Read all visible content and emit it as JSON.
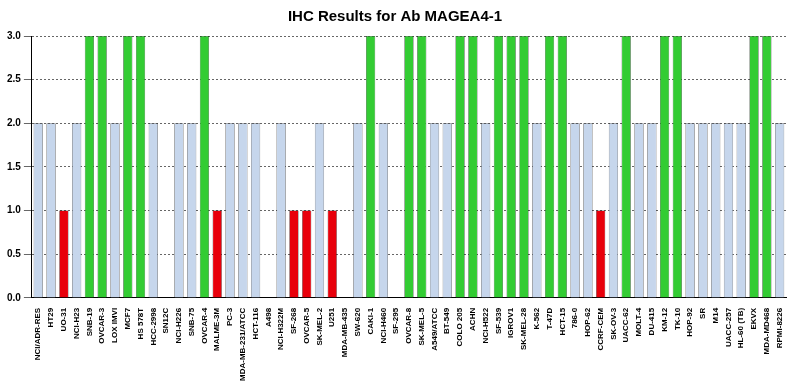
{
  "chart_data": {
    "type": "bar",
    "title": "IHC Results for Ab MAGEA4-1",
    "categories": [
      "NCI/ADR-RES",
      "HT29",
      "UO-31",
      "NCI-H23",
      "SNB-19",
      "OVCAR-3",
      "LOX IMVI",
      "MCF7",
      "HS 578T",
      "HCC-2998",
      "SN12C",
      "NCI-H226",
      "SNB-75",
      "OVCAR-4",
      "MALME-3M",
      "PC-3",
      "MDA-MB-231/ATCC",
      "HCT-116",
      "A498",
      "NCI-H322M",
      "SF-268",
      "OVCAR-5",
      "SK-MEL-2",
      "U251",
      "MDA-MB-435",
      "SW-620",
      "CAKI-1",
      "NCI-H460",
      "SF-295",
      "OVCAR-8",
      "SK-MEL-5",
      "A549/ATCC",
      "BT-549",
      "COLO 205",
      "ACHN",
      "NCI-H522",
      "SF-539",
      "IGROV1",
      "SK-MEL-28",
      "K-562",
      "T-47D",
      "HCT-15",
      "786-0",
      "HOP-62",
      "CCRF-CEM",
      "SK-OV-3",
      "UACC-62",
      "MOLT-4",
      "DU-415",
      "KM-12",
      "TK-10",
      "HOP-92",
      "SR",
      "M14",
      "UACC-257",
      "HL-60 (TB)",
      "EKVX",
      "MDA-MD468",
      "RPMI-8226"
    ],
    "values": [
      2,
      2,
      1,
      2,
      3,
      3,
      2,
      3,
      3,
      2,
      0,
      2,
      2,
      3,
      1,
      2,
      2,
      2,
      0,
      2,
      1,
      1,
      2,
      1,
      0,
      2,
      3,
      2,
      0,
      3,
      3,
      2,
      2,
      3,
      3,
      2,
      3,
      3,
      3,
      2,
      3,
      3,
      2,
      2,
      1,
      2,
      3,
      2,
      2,
      3,
      3,
      2,
      2,
      2,
      2,
      2,
      3,
      3,
      2
    ],
    "colors": [
      "#c6d6ec",
      "#c6d6ec",
      "#e8000b",
      "#c6d6ec",
      "#33cc33",
      "#33cc33",
      "#c6d6ec",
      "#33cc33",
      "#33cc33",
      "#c6d6ec",
      "#c6d6ec",
      "#c6d6ec",
      "#c6d6ec",
      "#33cc33",
      "#e8000b",
      "#c6d6ec",
      "#c6d6ec",
      "#c6d6ec",
      "#c6d6ec",
      "#c6d6ec",
      "#e8000b",
      "#e8000b",
      "#c6d6ec",
      "#e8000b",
      "#c6d6ec",
      "#c6d6ec",
      "#33cc33",
      "#c6d6ec",
      "#c6d6ec",
      "#33cc33",
      "#33cc33",
      "#c6d6ec",
      "#c6d6ec",
      "#33cc33",
      "#33cc33",
      "#c6d6ec",
      "#33cc33",
      "#33cc33",
      "#33cc33",
      "#c6d6ec",
      "#33cc33",
      "#33cc33",
      "#c6d6ec",
      "#c6d6ec",
      "#e8000b",
      "#c6d6ec",
      "#33cc33",
      "#c6d6ec",
      "#c6d6ec",
      "#33cc33",
      "#33cc33",
      "#c6d6ec",
      "#c6d6ec",
      "#c6d6ec",
      "#c6d6ec",
      "#c6d6ec",
      "#33cc33",
      "#33cc33",
      "#c6d6ec"
    ],
    "ylim": [
      0,
      3
    ],
    "yticks": [
      {
        "value": 0,
        "label": "0.0"
      },
      {
        "value": 0.5,
        "label": "0.5"
      },
      {
        "value": 1,
        "label": "1.0"
      },
      {
        "value": 1.5,
        "label": "1.5"
      },
      {
        "value": 2,
        "label": "2.0"
      },
      {
        "value": 2.5,
        "label": "2.5"
      },
      {
        "value": 3,
        "label": "3.0"
      }
    ],
    "grid": true
  }
}
